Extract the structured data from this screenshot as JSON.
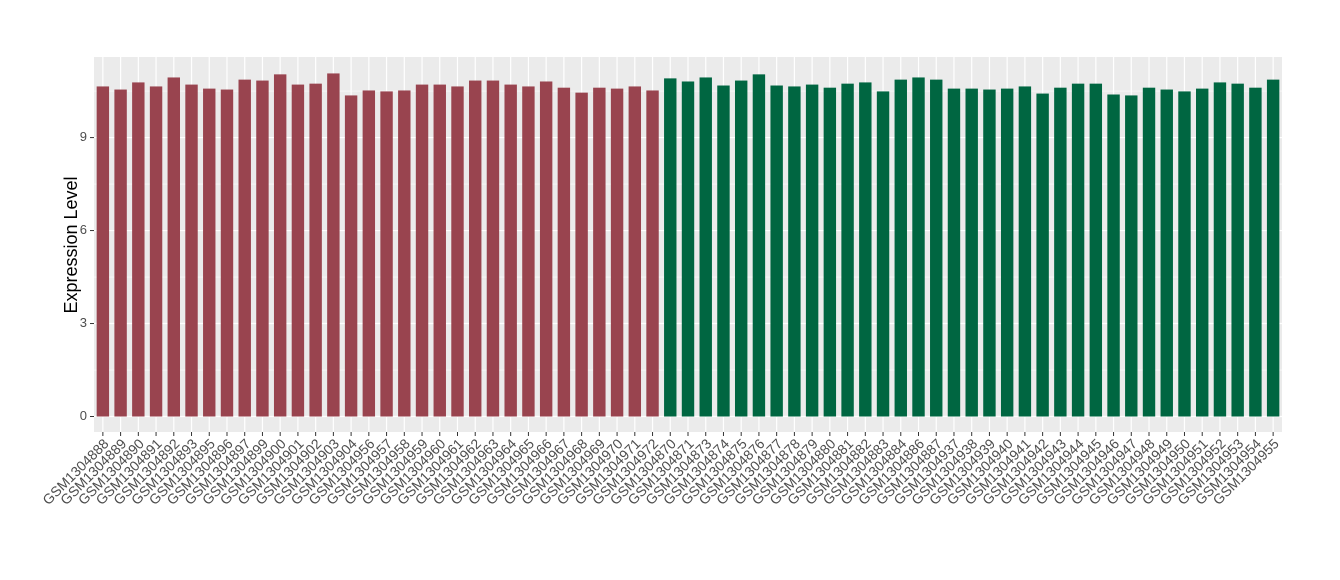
{
  "chart_data": {
    "type": "bar",
    "ylabel": "Expression Level",
    "categories": [
      "GSM1304888",
      "GSM1304889",
      "GSM1304890",
      "GSM1304891",
      "GSM1304892",
      "GSM1304893",
      "GSM1304895",
      "GSM1304896",
      "GSM1304897",
      "GSM1304899",
      "GSM1304900",
      "GSM1304901",
      "GSM1304902",
      "GSM1304903",
      "GSM1304904",
      "GSM1304956",
      "GSM1304957",
      "GSM1304958",
      "GSM1304959",
      "GSM1304960",
      "GSM1304961",
      "GSM1304962",
      "GSM1304963",
      "GSM1304964",
      "GSM1304965",
      "GSM1304966",
      "GSM1304967",
      "GSM1304968",
      "GSM1304969",
      "GSM1304970",
      "GSM1304971",
      "GSM1304972",
      "GSM1304870",
      "GSM1304871",
      "GSM1304873",
      "GSM1304874",
      "GSM1304875",
      "GSM1304876",
      "GSM1304877",
      "GSM1304878",
      "GSM1304879",
      "GSM1304880",
      "GSM1304881",
      "GSM1304882",
      "GSM1304883",
      "GSM1304884",
      "GSM1304886",
      "GSM1304887",
      "GSM1304937",
      "GSM1304938",
      "GSM1304939",
      "GSM1304940",
      "GSM1304941",
      "GSM1304942",
      "GSM1304943",
      "GSM1304944",
      "GSM1304945",
      "GSM1304946",
      "GSM1304947",
      "GSM1304948",
      "GSM1304949",
      "GSM1304950",
      "GSM1304951",
      "GSM1304952",
      "GSM1304953",
      "GSM1304954",
      "GSM1304955"
    ],
    "values": [
      10.65,
      10.55,
      10.78,
      10.65,
      10.94,
      10.71,
      10.58,
      10.55,
      10.87,
      10.84,
      11.04,
      10.71,
      10.74,
      11.07,
      10.36,
      10.52,
      10.49,
      10.52,
      10.71,
      10.71,
      10.65,
      10.84,
      10.84,
      10.71,
      10.65,
      10.81,
      10.61,
      10.45,
      10.61,
      10.58,
      10.65,
      10.52,
      10.91,
      10.81,
      10.94,
      10.68,
      10.84,
      11.04,
      10.68,
      10.65,
      10.71,
      10.61,
      10.74,
      10.78,
      10.49,
      10.87,
      10.94,
      10.87,
      10.58,
      10.58,
      10.55,
      10.58,
      10.65,
      10.42,
      10.61,
      10.74,
      10.74,
      10.39,
      10.36,
      10.61,
      10.55,
      10.49,
      10.58,
      10.78,
      10.74,
      10.61,
      10.87
    ],
    "colors": [
      "#99444f",
      "#99444f",
      "#99444f",
      "#99444f",
      "#99444f",
      "#99444f",
      "#99444f",
      "#99444f",
      "#99444f",
      "#99444f",
      "#99444f",
      "#99444f",
      "#99444f",
      "#99444f",
      "#99444f",
      "#99444f",
      "#99444f",
      "#99444f",
      "#99444f",
      "#99444f",
      "#99444f",
      "#99444f",
      "#99444f",
      "#99444f",
      "#99444f",
      "#99444f",
      "#99444f",
      "#99444f",
      "#99444f",
      "#99444f",
      "#99444f",
      "#99444f",
      "#006641",
      "#006641",
      "#006641",
      "#006641",
      "#006641",
      "#006641",
      "#006641",
      "#006641",
      "#006641",
      "#006641",
      "#006641",
      "#006641",
      "#006641",
      "#006641",
      "#006641",
      "#006641",
      "#006641",
      "#006641",
      "#006641",
      "#006641",
      "#006641",
      "#006641",
      "#006641",
      "#006641",
      "#006641",
      "#006641",
      "#006641",
      "#006641",
      "#006641",
      "#006641",
      "#006641",
      "#006641",
      "#006641",
      "#006641",
      "#006641"
    ],
    "ylim": [
      -0.5,
      11.6
    ],
    "yticks": [
      0,
      3,
      6,
      9
    ],
    "minor_yticks": [
      1.5,
      4.5,
      7.5,
      10.5
    ],
    "grid": true
  }
}
